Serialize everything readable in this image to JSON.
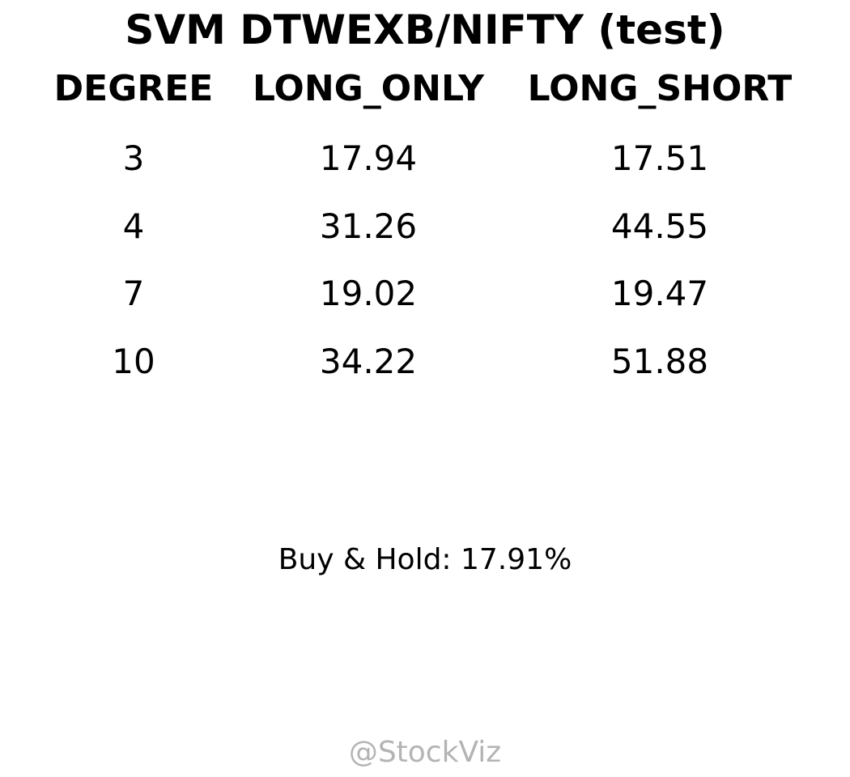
{
  "title": "SVM DTWEXB/NIFTY (test)",
  "chart_data": {
    "type": "table",
    "title": "SVM DTWEXB/NIFTY (test)",
    "columns": [
      "DEGREE",
      "LONG_ONLY",
      "LONG_SHORT"
    ],
    "rows": [
      [
        "3",
        "17.94",
        "17.51"
      ],
      [
        "4",
        "31.26",
        "44.55"
      ],
      [
        "7",
        "19.02",
        "19.47"
      ],
      [
        "10",
        "34.22",
        "51.88"
      ]
    ]
  },
  "footnote": "Buy & Hold: 17.91%",
  "watermark": "@StockViz",
  "colors": {
    "text": "#000000",
    "watermark": "#b4b4b4",
    "background": "#ffffff"
  }
}
